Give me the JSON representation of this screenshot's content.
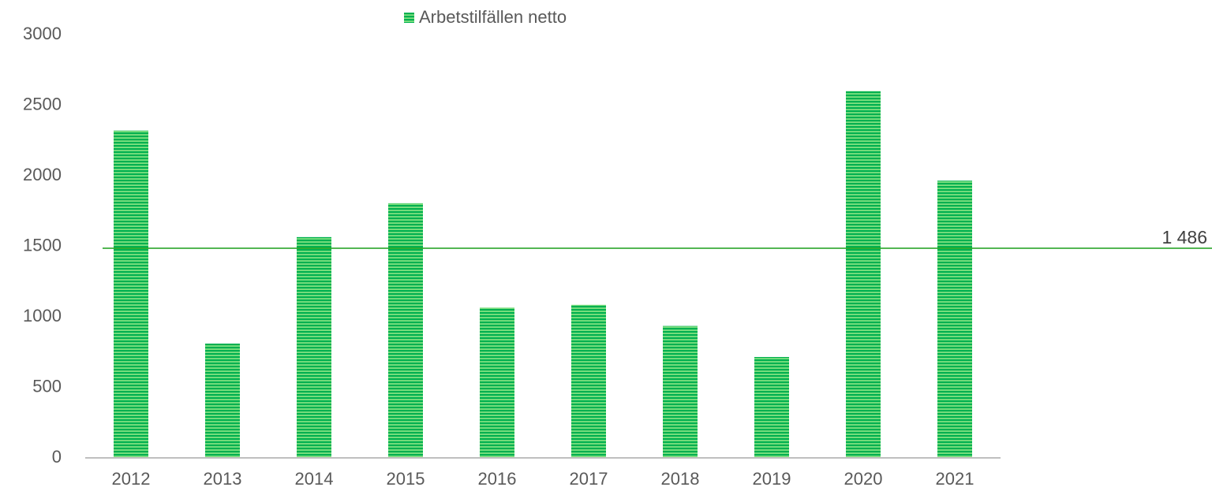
{
  "chart_data": {
    "type": "bar",
    "categories": [
      "2012",
      "2013",
      "2014",
      "2015",
      "2016",
      "2017",
      "2018",
      "2019",
      "2020",
      "2021"
    ],
    "series": [
      {
        "name": "Arbetstilfällen netto",
        "color": "#00b050",
        "values": [
          2320,
          810,
          1565,
          1805,
          1065,
          1085,
          935,
          715,
          2600,
          1965
        ]
      }
    ],
    "ylim": [
      0,
      3000
    ],
    "yticks": [
      0,
      500,
      1000,
      1500,
      2000,
      2500,
      3000
    ],
    "grid": false,
    "legend": "top",
    "reference_line": {
      "value": 1486,
      "label": "1 486",
      "color": "#1a9e1a"
    }
  }
}
